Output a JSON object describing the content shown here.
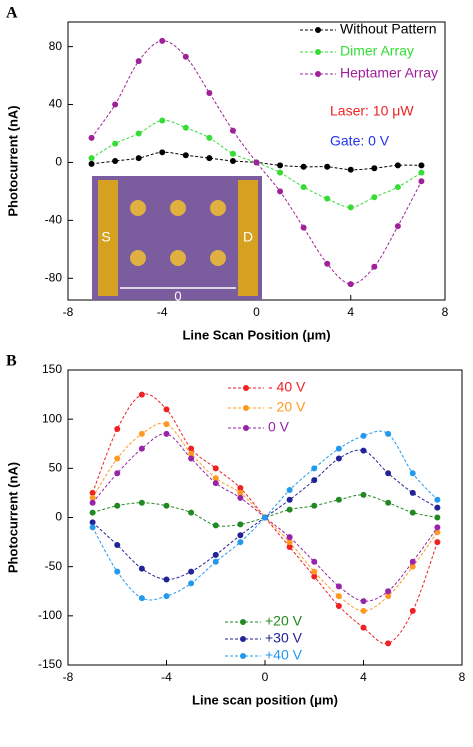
{
  "chart_data": [
    {
      "type": "line",
      "panel_label": "A",
      "x_label": "Line Scan Position (μm)",
      "y_label": "Photocurrent (nA)",
      "x": [
        -7,
        -6,
        -5,
        -4,
        -3,
        -2,
        -1,
        0,
        1,
        2,
        3,
        4,
        5,
        6,
        7
      ],
      "xlim": [
        -8,
        8
      ],
      "xticks": [
        -8,
        -4,
        0,
        4,
        8
      ],
      "ylim": [
        -95,
        97
      ],
      "yticks": [
        -80,
        -40,
        0,
        40,
        80
      ],
      "series": [
        {
          "name": "Without Pattern",
          "color": "#000000",
          "values": [
            -1,
            1,
            3,
            7,
            5,
            3,
            1,
            0,
            -2,
            -3,
            -3,
            -5,
            -4,
            -2,
            -2
          ]
        },
        {
          "name": "Dimer Array",
          "color": "#33dd33",
          "values": [
            3,
            13,
            20,
            29,
            24,
            17,
            6,
            0,
            -7,
            -17,
            -25,
            -31,
            -24,
            -17,
            -7
          ]
        },
        {
          "name": "Heptamer Array",
          "color": "#a0209a",
          "values": [
            17,
            40,
            70,
            84,
            73,
            48,
            22,
            0,
            -20,
            -45,
            -70,
            -84,
            -72,
            -44,
            -13
          ]
        }
      ],
      "annotations": [
        {
          "text": "Laser: 10 μW",
          "color": "#ee2222"
        },
        {
          "text": "Gate: 0 V",
          "color": "#2233ee"
        }
      ],
      "inset_labels": [
        "S",
        "D",
        "0"
      ]
    },
    {
      "type": "line",
      "panel_label": "B",
      "x_label": "Line scan position (μm)",
      "y_label": "Photocurrent (nA)",
      "x": [
        -7,
        -6,
        -5,
        -4,
        -3,
        -2,
        -1,
        0,
        1,
        2,
        3,
        4,
        5,
        6,
        7
      ],
      "xlim": [
        -8,
        8
      ],
      "xticks": [
        -8,
        -4,
        0,
        4,
        8
      ],
      "ylim": [
        -150,
        150
      ],
      "yticks": [
        -150,
        -100,
        -50,
        0,
        50,
        100,
        150
      ],
      "series": [
        {
          "name": "- 40 V",
          "color": "#ee2222",
          "values": [
            25,
            90,
            125,
            110,
            70,
            50,
            30,
            0,
            -30,
            -60,
            -90,
            -112,
            -128,
            -95,
            -25
          ]
        },
        {
          "name": "- 20 V",
          "color": "#ff9922",
          "values": [
            20,
            60,
            85,
            95,
            65,
            40,
            25,
            0,
            -25,
            -55,
            -80,
            -95,
            -80,
            -50,
            -15
          ]
        },
        {
          "name": "0 V",
          "color": "#9922aa",
          "values": [
            15,
            45,
            70,
            85,
            60,
            35,
            20,
            0,
            -20,
            -45,
            -70,
            -85,
            -75,
            -45,
            -10
          ]
        },
        {
          "name": "+20 V",
          "color": "#228822",
          "values": [
            5,
            12,
            15,
            12,
            5,
            -8,
            -7,
            0,
            8,
            12,
            18,
            23,
            15,
            5,
            0
          ]
        },
        {
          "name": "+30 V",
          "color": "#222299",
          "values": [
            -5,
            -28,
            -52,
            -63,
            -55,
            -38,
            -18,
            0,
            18,
            38,
            60,
            68,
            45,
            25,
            10
          ]
        },
        {
          "name": "+40 V",
          "color": "#2299ee",
          "values": [
            -10,
            -55,
            -82,
            -80,
            -67,
            -45,
            -25,
            0,
            28,
            50,
            70,
            83,
            85,
            45,
            18
          ]
        }
      ]
    }
  ]
}
